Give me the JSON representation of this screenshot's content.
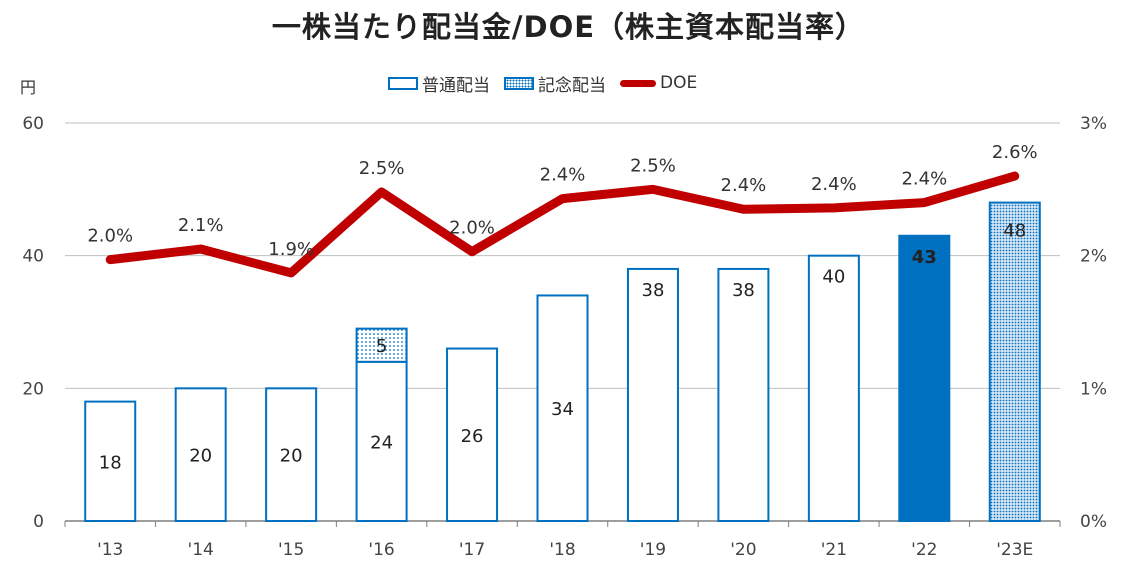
{
  "title": "一株当たり配当金/DOE（株主資本配当率）",
  "unit_label": "円",
  "legend": [
    {
      "label": "普通配当",
      "style": "outline"
    },
    {
      "label": "記念配当",
      "style": "dotted"
    },
    {
      "label": "DOE",
      "style": "line"
    }
  ],
  "colors": {
    "bar_outline": "#0070c0",
    "bar_fill_highlight": "#0070c0",
    "doe_line": "#c00000",
    "grid": "#bfbfbf"
  },
  "chart_data": {
    "type": "bar",
    "categories": [
      "'13",
      "'14",
      "'15",
      "'16",
      "'17",
      "'18",
      "'19",
      "'20",
      "'21",
      "'22",
      "'23E"
    ],
    "series": [
      {
        "name": "普通配当",
        "values": [
          18,
          20,
          20,
          24,
          26,
          34,
          38,
          38,
          40,
          43,
          null
        ],
        "axis": "left"
      },
      {
        "name": "記念配当",
        "values": [
          0,
          0,
          0,
          5,
          0,
          0,
          0,
          0,
          0,
          0,
          48
        ],
        "axis": "left"
      },
      {
        "name": "DOE",
        "type": "line",
        "axis": "right",
        "values": [
          1.97,
          2.05,
          1.87,
          2.48,
          2.03,
          2.43,
          2.5,
          2.35,
          2.36,
          2.4,
          2.6
        ],
        "labels": [
          "2.0%",
          "2.1%",
          "1.9%",
          "2.5%",
          "2.0%",
          "2.4%",
          "2.5%",
          "2.4%",
          "2.4%",
          "2.4%",
          "2.6%"
        ]
      }
    ],
    "bar_labels": [
      [
        "18"
      ],
      [
        "20"
      ],
      [
        "20"
      ],
      [
        "24",
        "5"
      ],
      [
        "26"
      ],
      [
        "34"
      ],
      [
        "38"
      ],
      [
        "38"
      ],
      [
        "40"
      ],
      [
        "43"
      ],
      [
        "48"
      ]
    ],
    "highlight": {
      "'22": "solid",
      "'23E": "dotted-fill"
    },
    "ylim": [
      0,
      60
    ],
    "yticks": [
      "0",
      "20",
      "40",
      "60"
    ],
    "y2lim": [
      0,
      3
    ],
    "y2ticks": [
      "0%",
      "1%",
      "2%",
      "3%"
    ],
    "grid": true,
    "legend_position": "top-center"
  }
}
